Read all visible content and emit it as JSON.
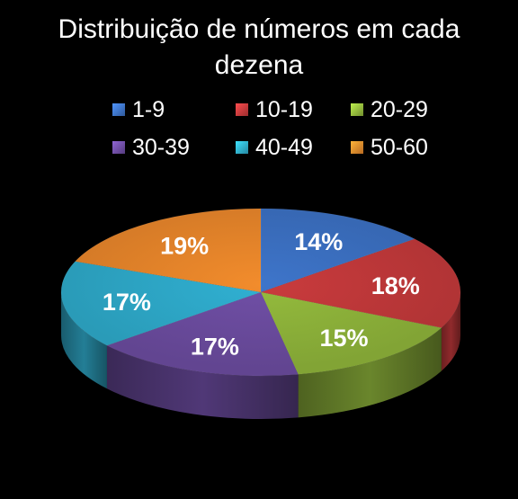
{
  "chart_data": {
    "type": "pie",
    "title_lines": [
      "Distribuição de números em cada",
      "dezena"
    ],
    "categories": [
      "1-9",
      "10-19",
      "20-29",
      "30-39",
      "40-49",
      "50-60"
    ],
    "values": [
      14,
      18,
      15,
      17,
      17,
      19
    ],
    "labels": [
      "14%",
      "18%",
      "15%",
      "17%",
      "17%",
      "19%"
    ],
    "colors": [
      "#3b6fc0",
      "#c0383a",
      "#8db23a",
      "#6b4b9e",
      "#2ea8c8",
      "#e6852a"
    ],
    "style": "3d",
    "legend_position": "top"
  }
}
